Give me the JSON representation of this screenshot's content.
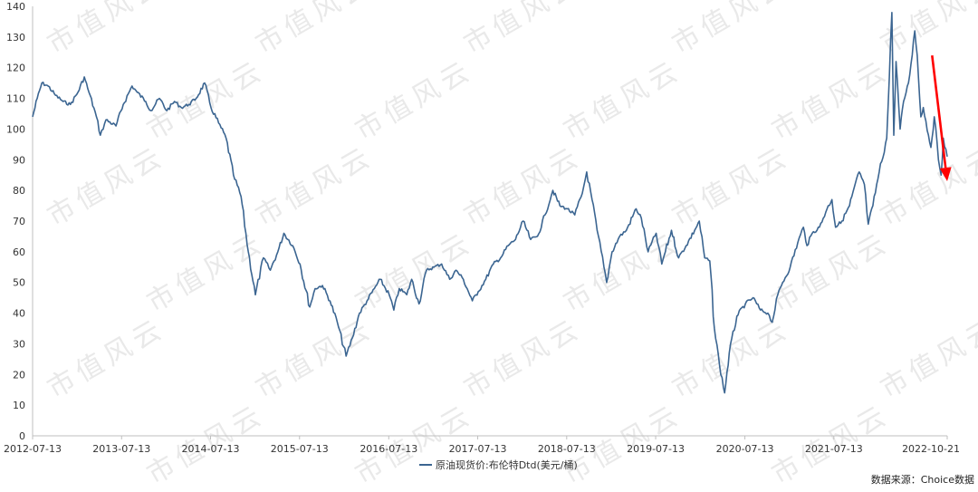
{
  "chart_data": {
    "type": "line",
    "title": "",
    "xlabel": "",
    "ylabel": "",
    "ylim": [
      0,
      140
    ],
    "y_ticks": [
      0,
      10,
      20,
      30,
      40,
      50,
      60,
      70,
      80,
      90,
      100,
      110,
      120,
      130,
      140
    ],
    "x_tick_labels": [
      "2012-07-13",
      "2013-07-13",
      "2014-07-13",
      "2015-07-13",
      "2016-07-13",
      "2017-07-13",
      "2018-07-13",
      "2019-07-13",
      "2020-07-13",
      "2021-07-13",
      "2022-10-21"
    ],
    "x_range": [
      "2012-07-13",
      "2022-10-21"
    ],
    "grid": false,
    "legend_position": "bottom-center",
    "series": [
      {
        "name": "原油现货价:布伦特Dtd(美元/桶)",
        "color": "#3b6591",
        "points": [
          [
            "2012-07-13",
            104
          ],
          [
            "2012-08-01",
            110
          ],
          [
            "2012-08-20",
            115
          ],
          [
            "2012-09-15",
            114
          ],
          [
            "2012-10-15",
            111
          ],
          [
            "2012-11-15",
            109
          ],
          [
            "2012-12-15",
            108
          ],
          [
            "2013-01-15",
            112
          ],
          [
            "2013-02-10",
            117
          ],
          [
            "2013-03-01",
            112
          ],
          [
            "2013-04-01",
            104
          ],
          [
            "2013-04-17",
            98
          ],
          [
            "2013-05-10",
            103
          ],
          [
            "2013-06-20",
            101
          ],
          [
            "2013-07-20",
            108
          ],
          [
            "2013-08-25",
            114
          ],
          [
            "2013-09-15",
            112
          ],
          [
            "2013-10-20",
            109
          ],
          [
            "2013-11-10",
            106
          ],
          [
            "2013-12-15",
            110
          ],
          [
            "2014-01-15",
            106
          ],
          [
            "2014-02-15",
            109
          ],
          [
            "2014-03-15",
            107
          ],
          [
            "2014-04-15",
            108
          ],
          [
            "2014-05-15",
            110
          ],
          [
            "2014-06-19",
            115
          ],
          [
            "2014-07-15",
            107
          ],
          [
            "2014-08-15",
            102
          ],
          [
            "2014-09-15",
            97
          ],
          [
            "2014-10-15",
            85
          ],
          [
            "2014-11-15",
            78
          ],
          [
            "2014-12-15",
            60
          ],
          [
            "2015-01-13",
            46
          ],
          [
            "2015-02-15",
            58
          ],
          [
            "2015-03-15",
            54
          ],
          [
            "2015-04-15",
            60
          ],
          [
            "2015-05-10",
            66
          ],
          [
            "2015-06-15",
            62
          ],
          [
            "2015-07-15",
            56
          ],
          [
            "2015-08-24",
            42
          ],
          [
            "2015-09-15",
            48
          ],
          [
            "2015-10-15",
            49
          ],
          [
            "2015-11-15",
            44
          ],
          [
            "2015-12-15",
            37
          ],
          [
            "2016-01-20",
            26
          ],
          [
            "2016-02-15",
            32
          ],
          [
            "2016-03-15",
            40
          ],
          [
            "2016-04-15",
            44
          ],
          [
            "2016-05-15",
            48
          ],
          [
            "2016-06-08",
            51
          ],
          [
            "2016-07-15",
            46
          ],
          [
            "2016-08-03",
            41
          ],
          [
            "2016-08-25",
            48
          ],
          [
            "2016-09-25",
            46
          ],
          [
            "2016-10-15",
            51
          ],
          [
            "2016-11-14",
            43
          ],
          [
            "2016-12-15",
            54
          ],
          [
            "2017-01-15",
            55
          ],
          [
            "2017-02-15",
            56
          ],
          [
            "2017-03-20",
            51
          ],
          [
            "2017-04-15",
            54
          ],
          [
            "2017-05-15",
            51
          ],
          [
            "2017-06-21",
            44
          ],
          [
            "2017-07-15",
            47
          ],
          [
            "2017-08-15",
            51
          ],
          [
            "2017-09-15",
            56
          ],
          [
            "2017-10-15",
            58
          ],
          [
            "2017-11-15",
            62
          ],
          [
            "2017-12-15",
            64
          ],
          [
            "2018-01-15",
            70
          ],
          [
            "2018-02-15",
            64
          ],
          [
            "2018-03-15",
            65
          ],
          [
            "2018-04-15",
            72
          ],
          [
            "2018-05-17",
            80
          ],
          [
            "2018-06-15",
            75
          ],
          [
            "2018-07-15",
            74
          ],
          [
            "2018-08-15",
            72
          ],
          [
            "2018-09-15",
            79
          ],
          [
            "2018-10-03",
            86
          ],
          [
            "2018-10-25",
            77
          ],
          [
            "2018-11-15",
            67
          ],
          [
            "2018-12-24",
            50
          ],
          [
            "2019-01-15",
            60
          ],
          [
            "2019-02-15",
            65
          ],
          [
            "2019-03-15",
            67
          ],
          [
            "2019-04-24",
            74
          ],
          [
            "2019-05-15",
            71
          ],
          [
            "2019-06-12",
            60
          ],
          [
            "2019-07-15",
            66
          ],
          [
            "2019-08-07",
            56
          ],
          [
            "2019-09-16",
            67
          ],
          [
            "2019-10-15",
            58
          ],
          [
            "2019-11-15",
            62
          ],
          [
            "2019-12-20",
            67
          ],
          [
            "2020-01-08",
            70
          ],
          [
            "2020-01-30",
            58
          ],
          [
            "2020-02-20",
            57
          ],
          [
            "2020-03-10",
            35
          ],
          [
            "2020-03-31",
            23
          ],
          [
            "2020-04-21",
            14
          ],
          [
            "2020-05-10",
            27
          ],
          [
            "2020-06-10",
            39
          ],
          [
            "2020-07-15",
            43
          ],
          [
            "2020-08-15",
            45
          ],
          [
            "2020-09-15",
            41
          ],
          [
            "2020-10-15",
            40
          ],
          [
            "2020-11-02",
            37
          ],
          [
            "2020-11-25",
            46
          ],
          [
            "2020-12-15",
            50
          ],
          [
            "2021-01-15",
            55
          ],
          [
            "2021-02-15",
            63
          ],
          [
            "2021-03-10",
            68
          ],
          [
            "2021-03-25",
            62
          ],
          [
            "2021-04-15",
            66
          ],
          [
            "2021-05-15",
            68
          ],
          [
            "2021-06-15",
            74
          ],
          [
            "2021-07-05",
            77
          ],
          [
            "2021-07-20",
            68
          ],
          [
            "2021-08-15",
            70
          ],
          [
            "2021-09-15",
            75
          ],
          [
            "2021-10-25",
            86
          ],
          [
            "2021-11-15",
            82
          ],
          [
            "2021-12-01",
            69
          ],
          [
            "2021-12-20",
            75
          ],
          [
            "2022-01-15",
            86
          ],
          [
            "2022-02-15",
            97
          ],
          [
            "2022-03-08",
            138
          ],
          [
            "2022-03-16",
            98
          ],
          [
            "2022-03-25",
            122
          ],
          [
            "2022-04-11",
            100
          ],
          [
            "2022-04-25",
            109
          ],
          [
            "2022-05-15",
            115
          ],
          [
            "2022-06-10",
            132
          ],
          [
            "2022-06-20",
            124
          ],
          [
            "2022-07-05",
            104
          ],
          [
            "2022-07-15",
            107
          ],
          [
            "2022-08-05",
            98
          ],
          [
            "2022-08-15",
            94
          ],
          [
            "2022-08-29",
            104
          ],
          [
            "2022-09-15",
            90
          ],
          [
            "2022-09-26",
            85
          ],
          [
            "2022-10-05",
            97
          ],
          [
            "2022-10-21",
            91
          ]
        ]
      }
    ],
    "annotations": [
      {
        "type": "arrow",
        "color": "#ff0000",
        "from": [
          "2022-08-20",
          124
        ],
        "to": [
          "2022-10-21",
          83
        ]
      }
    ]
  },
  "watermark": "市值风云",
  "source_note": "数据来源：Choice数据"
}
